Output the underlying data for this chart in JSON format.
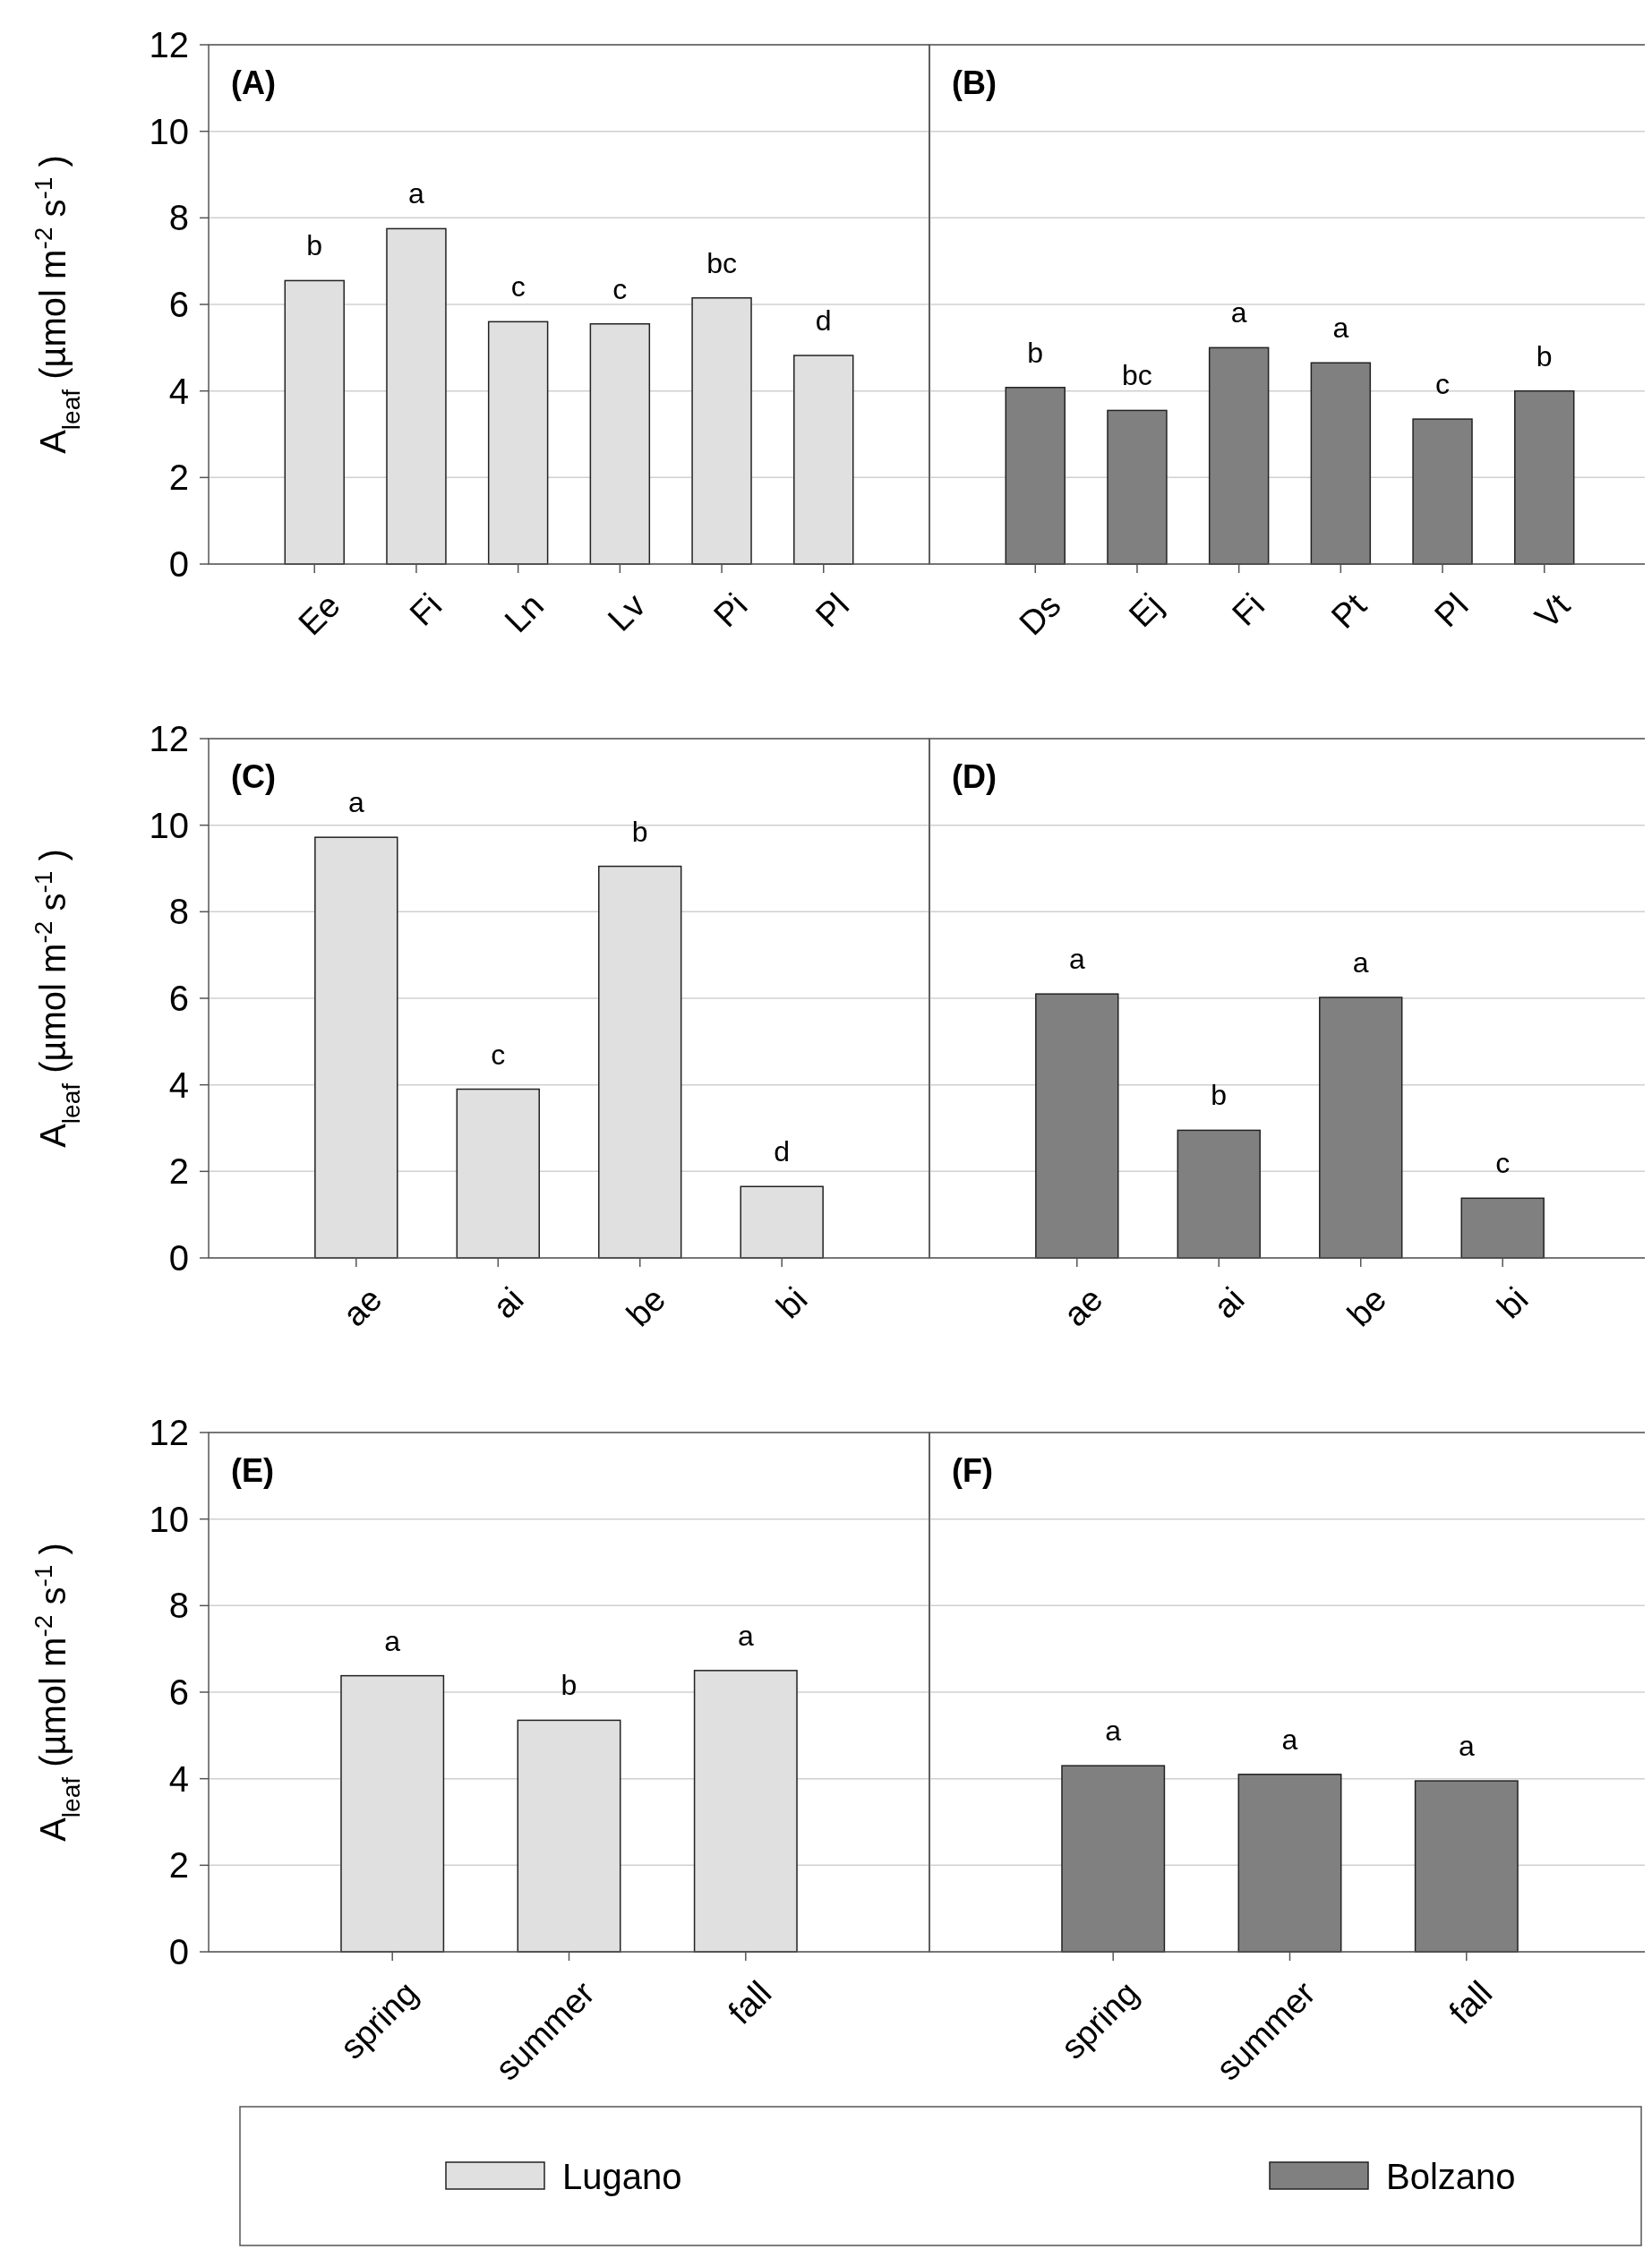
{
  "chart_data": [
    {
      "type": "bar",
      "title": "(A)",
      "ylabel": "A$_{leaf}$ (µmol m$^{-2}$ s$^{-1}$)",
      "categories": [
        "Ee",
        "Fi",
        "Ln",
        "Lv",
        "Pi",
        "Pl"
      ],
      "series": [
        {
          "name": "Lugano",
          "color": "#e0e0e0",
          "values": [
            6.55,
            7.75,
            5.6,
            5.55,
            6.15,
            4.82
          ]
        }
      ],
      "ylim": [
        0,
        12
      ],
      "yticks": [
        0,
        2,
        4,
        6,
        8,
        10,
        12
      ],
      "grid": "y",
      "annotations": [
        {
          "text": "b",
          "x": "Ee",
          "y": 6.55
        },
        {
          "text": "a",
          "x": "Fi",
          "y": 7.75
        },
        {
          "text": "c",
          "x": "Ln",
          "y": 5.6
        },
        {
          "text": "c",
          "x": "Lv",
          "y": 5.55
        },
        {
          "text": "bc",
          "x": "Pi",
          "y": 6.15
        },
        {
          "text": "d",
          "x": "Pl",
          "y": 4.82
        }
      ]
    },
    {
      "type": "bar",
      "title": "(B)",
      "categories": [
        "Ds",
        "Ej",
        "Fi",
        "Pt",
        "Pl",
        "Vt"
      ],
      "series": [
        {
          "name": "Bolzano",
          "color": "#808080",
          "values": [
            4.08,
            3.55,
            5.0,
            4.65,
            3.35,
            4.0
          ]
        }
      ],
      "ylim": [
        0,
        12
      ],
      "yticks": [
        0,
        2,
        4,
        6,
        8,
        10,
        12
      ],
      "grid": "y",
      "tick_labels": "x",
      "annotations": [
        {
          "text": "b",
          "x": "Ds",
          "y": 4.08
        },
        {
          "text": "bc",
          "x": "Ej",
          "y": 3.55
        },
        {
          "text": "a",
          "x": "Fi",
          "y": 5.0
        },
        {
          "text": "a",
          "x": "Pt",
          "y": 4.65
        },
        {
          "text": "c",
          "x": "Pl",
          "y": 3.35
        },
        {
          "text": "b",
          "x": "Vt",
          "y": 4.0
        }
      ]
    },
    {
      "type": "bar",
      "title": "(C)",
      "ylabel": "A$_{leaf}$ (µmol m$^{-2}$ s$^{-1}$)",
      "categories": [
        "ae",
        "ai",
        "be",
        "bi"
      ],
      "series": [
        {
          "name": "Lugano",
          "color": "#e0e0e0",
          "values": [
            9.72,
            3.9,
            9.05,
            1.65
          ]
        }
      ],
      "ylim": [
        0,
        12
      ],
      "yticks": [
        0,
        2,
        4,
        6,
        8,
        10,
        12
      ],
      "grid": "y",
      "annotations": [
        {
          "text": "a",
          "x": "ae",
          "y": 9.72
        },
        {
          "text": "c",
          "x": "ai",
          "y": 3.9
        },
        {
          "text": "b",
          "x": "be",
          "y": 9.05
        },
        {
          "text": "d",
          "x": "bi",
          "y": 1.65
        }
      ]
    },
    {
      "type": "bar",
      "title": "(D)",
      "categories": [
        "ae",
        "ai",
        "be",
        "bi"
      ],
      "series": [
        {
          "name": "Bolzano",
          "color": "#808080",
          "values": [
            6.1,
            2.95,
            6.02,
            1.38
          ]
        }
      ],
      "ylim": [
        0,
        12
      ],
      "yticks": [
        0,
        2,
        4,
        6,
        8,
        10,
        12
      ],
      "grid": "y",
      "tick_labels": "x",
      "annotations": [
        {
          "text": "a",
          "x": "ae",
          "y": 6.1
        },
        {
          "text": "b",
          "x": "ai",
          "y": 2.95
        },
        {
          "text": "a",
          "x": "be",
          "y": 6.02
        },
        {
          "text": "c",
          "x": "bi",
          "y": 1.38
        }
      ]
    },
    {
      "type": "bar",
      "title": "(E)",
      "ylabel": "A$_{leaf}$ (µmol m$^{-2}$ s$^{-1}$)",
      "categories": [
        "spring",
        "summer",
        "fall"
      ],
      "series": [
        {
          "name": "Lugano",
          "color": "#e0e0e0",
          "values": [
            6.38,
            5.35,
            6.5
          ]
        }
      ],
      "ylim": [
        0,
        12
      ],
      "yticks": [
        0,
        2,
        4,
        6,
        8,
        10,
        12
      ],
      "grid": "y",
      "legend": "bottom",
      "annotations": [
        {
          "text": "a",
          "x": "spring",
          "y": 6.38
        },
        {
          "text": "b",
          "x": "summer",
          "y": 5.35
        },
        {
          "text": "a",
          "x": "fall",
          "y": 6.5
        }
      ]
    },
    {
      "type": "bar",
      "title": "(F)",
      "categories": [
        "spring",
        "summer",
        "fall"
      ],
      "series": [
        {
          "name": "Bolzano",
          "color": "#808080",
          "values": [
            4.3,
            4.1,
            3.95
          ]
        }
      ],
      "ylim": [
        0,
        12
      ],
      "yticks": [
        0,
        2,
        4,
        6,
        8,
        10,
        12
      ],
      "grid": "y",
      "tick_labels": "x",
      "legend": "bottom",
      "annotations": [
        {
          "text": "a",
          "x": "spring",
          "y": 4.3
        },
        {
          "text": "a",
          "x": "summer",
          "y": 4.1
        },
        {
          "text": "a",
          "x": "fall",
          "y": 3.95
        }
      ]
    }
  ]
}
